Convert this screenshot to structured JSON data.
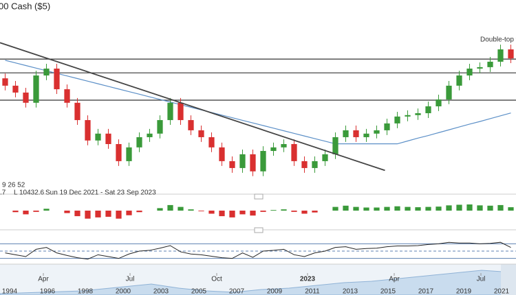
{
  "chart_data": {
    "type": "candlestick",
    "title": "00 Cash ($5)",
    "indicator_label": "9 26 52",
    "info": [
      ".7",
      "L 10432.6",
      "Sun 19 Dec 2021 - Sat 23 Sep 2023"
    ],
    "annotation": "Double-top format",
    "x": [
      0,
      1,
      2,
      3,
      4,
      5,
      6,
      7,
      8,
      9,
      10,
      11,
      12,
      13,
      14,
      15,
      16,
      17,
      18,
      19,
      20,
      21,
      22,
      23,
      24,
      25,
      26,
      27,
      28,
      29,
      30,
      31,
      32,
      33,
      34,
      35,
      36,
      37,
      38,
      39,
      40,
      41,
      42,
      43,
      44,
      45,
      46,
      47,
      48,
      49
    ],
    "open": [
      14600,
      14290,
      14000,
      13570,
      14720,
      15010,
      14140,
      13570,
      12840,
      11980,
      12270,
      11830,
      11110,
      11690,
      12120,
      12270,
      12840,
      13570,
      12840,
      12410,
      12120,
      11690,
      11110,
      10820,
      11400,
      10680,
      11540,
      11690,
      11830,
      11110,
      10820,
      11110,
      11400,
      12120,
      12410,
      12120,
      12270,
      12410,
      12700,
      12990,
      13050,
      13130,
      13420,
      13710,
      14290,
      14720,
      15010,
      15070,
      15300,
      15820
    ],
    "high": [
      14800,
      14490,
      14200,
      14920,
      15210,
      15210,
      14340,
      13770,
      13040,
      12470,
      12470,
      12030,
      11890,
      12320,
      12470,
      13040,
      13770,
      13770,
      13040,
      12610,
      12320,
      11890,
      11310,
      11600,
      11600,
      11740,
      11890,
      12030,
      12030,
      11310,
      11310,
      11600,
      12320,
      12610,
      12610,
      12470,
      12610,
      12900,
      13190,
      13250,
      13330,
      13620,
      13910,
      14490,
      14920,
      15210,
      15270,
      15500,
      16020,
      16020
    ],
    "low": [
      14090,
      13800,
      13370,
      13370,
      14520,
      13940,
      13370,
      12640,
      11780,
      11780,
      11630,
      10910,
      10910,
      11490,
      11920,
      12070,
      12640,
      12640,
      12210,
      11920,
      11490,
      10910,
      10620,
      10620,
      10480,
      10480,
      11340,
      11490,
      10910,
      10620,
      10620,
      10910,
      11200,
      11920,
      11920,
      11920,
      12070,
      12210,
      12500,
      12790,
      12850,
      12930,
      13220,
      13510,
      14090,
      14520,
      14810,
      14870,
      15100,
      15240
    ],
    "close": [
      14290,
      14000,
      13570,
      14720,
      15010,
      14140,
      13570,
      12840,
      11980,
      12270,
      11830,
      11110,
      11690,
      12120,
      12270,
      12840,
      13570,
      12840,
      12410,
      12120,
      11690,
      11110,
      10820,
      11400,
      10680,
      11540,
      11690,
      11830,
      11110,
      10820,
      11110,
      11400,
      12120,
      12410,
      12120,
      12270,
      12410,
      12700,
      12990,
      13050,
      13130,
      13420,
      13710,
      14290,
      14720,
      15010,
      15070,
      15300,
      15820,
      15440
    ],
    "up_color": "#3a9a3a",
    "down_color": "#d93030",
    "ma": {
      "color": "#5b8fc7",
      "values": [
        15360,
        15250,
        15140,
        15030,
        14920,
        14810,
        14700,
        14590,
        14480,
        14370,
        14260,
        14150,
        14040,
        13930,
        13820,
        13710,
        13600,
        13490,
        13380,
        13270,
        13160,
        13050,
        12940,
        12830,
        12720,
        12610,
        12500,
        12390,
        12280,
        12170,
        12060,
        11950,
        11840,
        11840,
        11840,
        11840,
        11840,
        11840,
        11840,
        11960,
        12080,
        12190,
        12310,
        12430,
        12550,
        12670,
        12780,
        12900,
        13020,
        13140
      ]
    },
    "levels": [
      15410,
      14830,
      13680
    ],
    "trendline": {
      "x": [
        -0.5,
        36.8
      ],
      "values": [
        16100,
        10720
      ]
    },
    "xlim": [
      -0.5,
      49.5
    ],
    "ylim": [
      10240,
      17900
    ],
    "xticks": [
      {
        "value": 3.7,
        "label": "Apr"
      },
      {
        "value": 12.1,
        "label": "Jul"
      },
      {
        "value": 20.5,
        "label": "Oct"
      },
      {
        "value": 29.3,
        "label": "2023"
      },
      {
        "value": 37.7,
        "label": "Apr"
      },
      {
        "value": 46.1,
        "label": "Jul"
      }
    ],
    "macd": {
      "ylim": [
        -400,
        400
      ],
      "values": [
        0,
        -50,
        -120,
        -40,
        60,
        0,
        -80,
        -180,
        -260,
        -220,
        -200,
        -260,
        -150,
        -50,
        0,
        80,
        180,
        120,
        40,
        -20,
        -100,
        -180,
        -220,
        -120,
        -160,
        -40,
        20,
        40,
        -40,
        -100,
        -60,
        0,
        120,
        160,
        120,
        100,
        100,
        120,
        140,
        120,
        110,
        120,
        130,
        170,
        190,
        200,
        170,
        160,
        180,
        110
      ]
    },
    "rsi": {
      "ylim": [
        20,
        80
      ],
      "levels": [
        30,
        50,
        70
      ],
      "color": "#222",
      "values": [
        45,
        40,
        35,
        55,
        60,
        45,
        38,
        32,
        28,
        40,
        35,
        30,
        42,
        50,
        52,
        58,
        65,
        48,
        42,
        40,
        36,
        32,
        30,
        45,
        33,
        50,
        52,
        55,
        40,
        35,
        45,
        50,
        60,
        62,
        55,
        57,
        58,
        62,
        64,
        64,
        65,
        68,
        70,
        74,
        72,
        72,
        70,
        71,
        74,
        60
      ]
    },
    "navigator": [
      "1994",
      "1996",
      "1998",
      "2000",
      "2003",
      "2005",
      "2007",
      "2009",
      "2011",
      "2013",
      "2015",
      "2017",
      "2019",
      "2021"
    ]
  }
}
